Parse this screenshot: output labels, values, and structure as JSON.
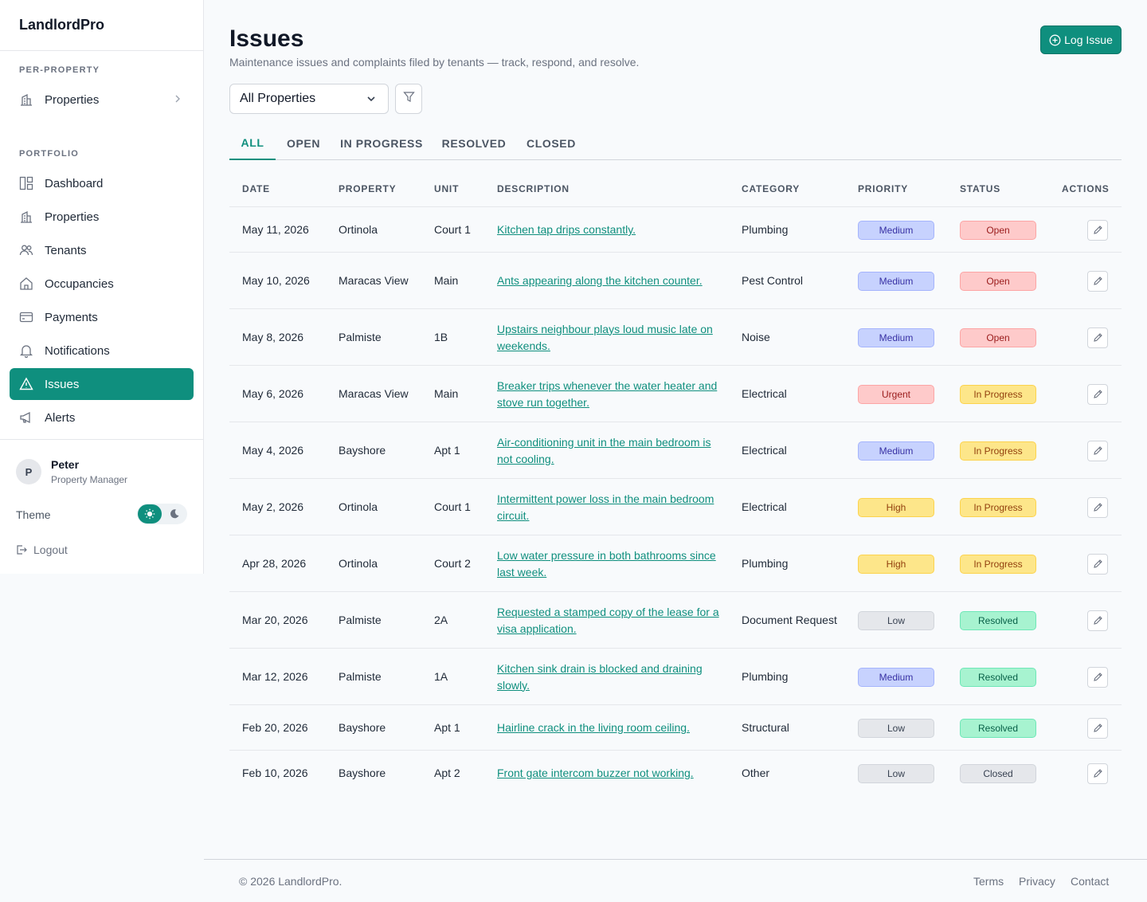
{
  "app": {
    "brand": "LandlordPro"
  },
  "sidebar": {
    "per_property_label": "PER-PROPERTY",
    "per_property_item": "Properties",
    "portfolio_label": "PORTFOLIO",
    "items": [
      {
        "label": "Dashboard",
        "icon": "dashboard-icon"
      },
      {
        "label": "Properties",
        "icon": "building-icon"
      },
      {
        "label": "Tenants",
        "icon": "users-icon"
      },
      {
        "label": "Occupancies",
        "icon": "home-icon"
      },
      {
        "label": "Payments",
        "icon": "credit-card-icon"
      },
      {
        "label": "Notifications",
        "icon": "bell-icon"
      },
      {
        "label": "Issues",
        "icon": "warning-icon",
        "active": true
      },
      {
        "label": "Alerts",
        "icon": "megaphone-icon"
      }
    ],
    "user": {
      "initial": "P",
      "name": "Peter",
      "role": "Property Manager"
    },
    "theme_label": "Theme",
    "logout_label": "Logout"
  },
  "header": {
    "title": "Issues",
    "subtitle": "Maintenance issues and complaints filed by tenants — track, respond, and resolve.",
    "log_button": "Log Issue"
  },
  "filters": {
    "property_select": "All Properties"
  },
  "tabs": [
    "ALL",
    "OPEN",
    "IN PROGRESS",
    "RESOLVED",
    "CLOSED"
  ],
  "active_tab": "ALL",
  "table": {
    "columns": [
      "DATE",
      "PROPERTY",
      "UNIT",
      "DESCRIPTION",
      "CATEGORY",
      "PRIORITY",
      "STATUS",
      "ACTIONS"
    ],
    "rows": [
      {
        "date": "May 11, 2026",
        "property": "Ortinola",
        "unit": "Court 1",
        "description": "Kitchen tap drips constantly.",
        "category": "Plumbing",
        "priority": "Medium",
        "status": "Open"
      },
      {
        "date": "May 10, 2026",
        "property": "Maracas View",
        "unit": "Main",
        "description": "Ants appearing along the kitchen counter.",
        "category": "Pest Control",
        "priority": "Medium",
        "status": "Open"
      },
      {
        "date": "May 8, 2026",
        "property": "Palmiste",
        "unit": "1B",
        "description": "Upstairs neighbour plays loud music late on weekends.",
        "category": "Noise",
        "priority": "Medium",
        "status": "Open"
      },
      {
        "date": "May 6, 2026",
        "property": "Maracas View",
        "unit": "Main",
        "description": "Breaker trips whenever the water heater and stove run together.",
        "category": "Electrical",
        "priority": "Urgent",
        "status": "In Progress"
      },
      {
        "date": "May 4, 2026",
        "property": "Bayshore",
        "unit": "Apt 1",
        "description": "Air-conditioning unit in the main bedroom is not cooling.",
        "category": "Electrical",
        "priority": "Medium",
        "status": "In Progress"
      },
      {
        "date": "May 2, 2026",
        "property": "Ortinola",
        "unit": "Court 1",
        "description": "Intermittent power loss in the main bedroom circuit.",
        "category": "Electrical",
        "priority": "High",
        "status": "In Progress"
      },
      {
        "date": "Apr 28, 2026",
        "property": "Ortinola",
        "unit": "Court 2",
        "description": "Low water pressure in both bathrooms since last week.",
        "category": "Plumbing",
        "priority": "High",
        "status": "In Progress"
      },
      {
        "date": "Mar 20, 2026",
        "property": "Palmiste",
        "unit": "2A",
        "description": "Requested a stamped copy of the lease for a visa application.",
        "category": "Document Request",
        "priority": "Low",
        "status": "Resolved"
      },
      {
        "date": "Mar 12, 2026",
        "property": "Palmiste",
        "unit": "1A",
        "description": "Kitchen sink drain is blocked and draining slowly.",
        "category": "Plumbing",
        "priority": "Medium",
        "status": "Resolved"
      },
      {
        "date": "Feb 20, 2026",
        "property": "Bayshore",
        "unit": "Apt 1",
        "description": "Hairline crack in the living room ceiling.",
        "category": "Structural",
        "priority": "Low",
        "status": "Resolved"
      },
      {
        "date": "Feb 10, 2026",
        "property": "Bayshore",
        "unit": "Apt 2",
        "description": "Front gate intercom buzzer not working.",
        "category": "Other",
        "priority": "Low",
        "status": "Closed"
      }
    ]
  },
  "footer": {
    "copyright": "© 2026 LandlordPro.",
    "links": [
      "Terms",
      "Privacy",
      "Contact"
    ]
  },
  "colors": {
    "accent": "#0f8f7e",
    "background": "#f8fafc"
  }
}
